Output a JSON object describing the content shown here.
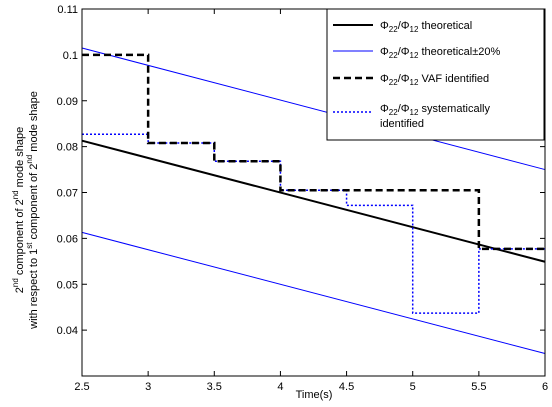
{
  "chart_data": {
    "type": "line",
    "title": "",
    "xlabel": "Time(s)",
    "ylabel_line1": {
      "pre": "2",
      "sup1": "nd",
      "mid": " component of 2",
      "sup2": "nd",
      "post": " mode shape"
    },
    "ylabel_line2": {
      "pre": "with respect to 1",
      "sup1": "st",
      "mid": " component of 2",
      "sup2": "nd",
      "post": " mode shape"
    },
    "xlim": [
      2.5,
      6
    ],
    "ylim": [
      0.03,
      0.11
    ],
    "xticks": [
      "2.5",
      "3",
      "3.5",
      "4",
      "4.5",
      "5",
      "5.5",
      "6"
    ],
    "yticks": [
      "0.04",
      "0.05",
      "0.06",
      "0.07",
      "0.08",
      "0.09",
      "0.1",
      "0.11"
    ],
    "grid": false,
    "legend_position": "top-right",
    "series": [
      {
        "name": {
          "sym": "Φ",
          "sub1": "22",
          "slash": "/Φ",
          "sub2": "12",
          "suffix": " theoretical"
        },
        "color": "#000000",
        "style": "solid",
        "width": 2,
        "x": [
          2.5,
          6
        ],
        "y": [
          0.0813,
          0.0549
        ]
      },
      {
        "name": {
          "sym": "Φ",
          "sub1": "22",
          "slash": "/Φ",
          "sub2": "12",
          "suffix": " theoretical±20%"
        },
        "color": "#0000ff",
        "style": "solid",
        "width": 1,
        "lines": [
          {
            "x": [
              2.5,
              6
            ],
            "y": [
              0.1015,
              0.075
            ]
          },
          {
            "x": [
              2.5,
              6
            ],
            "y": [
              0.0613,
              0.0349
            ]
          }
        ]
      },
      {
        "name": {
          "sym": "Φ",
          "sub1": "22",
          "slash": "/Φ",
          "sub2": "12",
          "suffix": " VAF identified"
        },
        "color": "#000000",
        "style": "dashed",
        "width": 2.5,
        "x": [
          2.5,
          3,
          3,
          3.5,
          3.5,
          4,
          4,
          4.5,
          4.5,
          5.5,
          5.5,
          6
        ],
        "y": [
          0.1,
          0.1,
          0.0808,
          0.0808,
          0.0768,
          0.0768,
          0.0705,
          0.0705,
          0.0705,
          0.0705,
          0.0577,
          0.0577
        ]
      },
      {
        "name": {
          "sym": "Φ",
          "sub1": "22",
          "slash": "/Φ",
          "sub2": "12",
          "suffix": " systematically",
          "line2": "identified"
        },
        "color": "#0000ff",
        "style": "dotted",
        "width": 1.5,
        "x": [
          2.5,
          3,
          3,
          3.5,
          3.5,
          4,
          4,
          4.5,
          4.5,
          5,
          5,
          5.5,
          5.5,
          6
        ],
        "y": [
          0.0827,
          0.0827,
          0.0808,
          0.0808,
          0.0768,
          0.0768,
          0.0705,
          0.0705,
          0.0672,
          0.0672,
          0.0437,
          0.0437,
          0.0577,
          0.0577
        ]
      }
    ]
  }
}
